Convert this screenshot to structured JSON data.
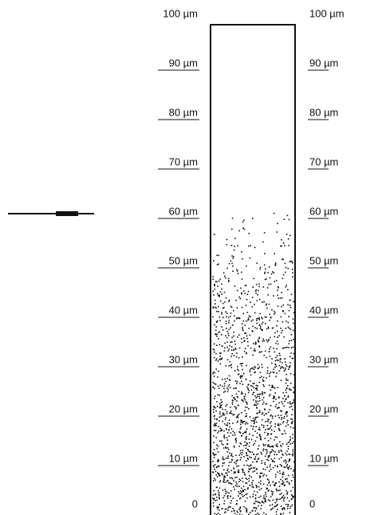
{
  "left_scale": {
    "labels": [
      "100 µm",
      "90 µm",
      "80 µm",
      "70 µm",
      "60 µm",
      "50 µm",
      "40 µm",
      "30 µm",
      "20 µm",
      "10 µm",
      "0"
    ]
  },
  "right_scale": {
    "labels": [
      "100 µm",
      "90 µm",
      "80 µm",
      "70 µm",
      "60 µm",
      "50 µm",
      "40 µm",
      "30 µm",
      "20 µm",
      "10 µm",
      "0"
    ]
  }
}
